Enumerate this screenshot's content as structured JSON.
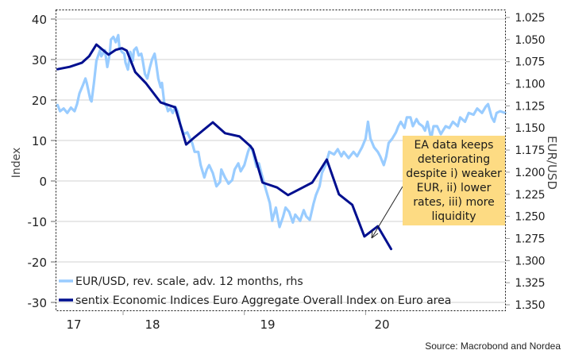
{
  "chart_data": {
    "type": "line",
    "title": "",
    "source": "Source: Macrobond and Nordea",
    "x_tick_labels": [
      "17",
      "18",
      "19",
      "20"
    ],
    "left_axis": {
      "label": "Index",
      "range": [
        -30,
        40
      ],
      "ticks": [
        40,
        30,
        20,
        10,
        0,
        -10,
        -20,
        -30
      ]
    },
    "right_axis": {
      "label": "EUR/USD",
      "reversed": true,
      "range": [
        1.025,
        1.35
      ],
      "ticks": [
        "1.025",
        "1.050",
        "1.075",
        "1.100",
        "1.125",
        "1.150",
        "1.175",
        "1.200",
        "1.225",
        "1.250",
        "1.275",
        "1.300",
        "1.325",
        "1.350"
      ]
    },
    "x_range": [
      2016.75,
      2020.45
    ],
    "grid": true,
    "legend_placement": "bottom-left",
    "series": [
      {
        "name": "EUR/USD, rev. scale, adv. 12 months, rhs",
        "axis": "right",
        "color": "#99CCFF",
        "points": [
          [
            2016.76,
            1.124
          ],
          [
            2016.78,
            1.131
          ],
          [
            2016.81,
            1.128
          ],
          [
            2016.84,
            1.133
          ],
          [
            2016.87,
            1.127
          ],
          [
            2016.9,
            1.131
          ],
          [
            2016.92,
            1.123
          ],
          [
            2016.94,
            1.111
          ],
          [
            2016.97,
            1.101
          ],
          [
            2016.99,
            1.094
          ],
          [
            2017.0,
            1.099
          ],
          [
            2017.03,
            1.118
          ],
          [
            2017.04,
            1.12
          ],
          [
            2017.06,
            1.099
          ],
          [
            2017.08,
            1.074
          ],
          [
            2017.11,
            1.062
          ],
          [
            2017.12,
            1.069
          ],
          [
            2017.15,
            1.062
          ],
          [
            2017.17,
            1.081
          ],
          [
            2017.19,
            1.066
          ],
          [
            2017.2,
            1.05
          ],
          [
            2017.22,
            1.047
          ],
          [
            2017.24,
            1.053
          ],
          [
            2017.26,
            1.045
          ],
          [
            2017.27,
            1.059
          ],
          [
            2017.29,
            1.064
          ],
          [
            2017.31,
            1.066
          ],
          [
            2017.32,
            1.076
          ],
          [
            2017.34,
            1.084
          ],
          [
            2017.36,
            1.064
          ],
          [
            2017.38,
            1.074
          ],
          [
            2017.39,
            1.062
          ],
          [
            2017.41,
            1.059
          ],
          [
            2017.43,
            1.068
          ],
          [
            2017.45,
            1.066
          ],
          [
            2017.46,
            1.072
          ],
          [
            2017.48,
            1.089
          ],
          [
            2017.5,
            1.094
          ],
          [
            2017.52,
            1.082
          ],
          [
            2017.54,
            1.072
          ],
          [
            2017.56,
            1.066
          ],
          [
            2017.57,
            1.074
          ],
          [
            2017.59,
            1.094
          ],
          [
            2017.61,
            1.104
          ],
          [
            2017.62,
            1.099
          ],
          [
            2017.64,
            1.122
          ],
          [
            2017.66,
            1.126
          ],
          [
            2017.67,
            1.131
          ],
          [
            2017.69,
            1.128
          ],
          [
            2017.71,
            1.133
          ],
          [
            2017.73,
            1.126
          ],
          [
            2017.75,
            1.131
          ],
          [
            2017.77,
            1.145
          ],
          [
            2017.8,
            1.157
          ],
          [
            2017.83,
            1.155
          ],
          [
            2017.87,
            1.167
          ],
          [
            2017.89,
            1.177
          ],
          [
            2017.92,
            1.177
          ],
          [
            2017.94,
            1.192
          ],
          [
            2017.97,
            1.206
          ],
          [
            2017.99,
            1.197
          ],
          [
            2018.01,
            1.192
          ],
          [
            2018.04,
            1.201
          ],
          [
            2018.07,
            1.216
          ],
          [
            2018.1,
            1.211
          ],
          [
            2018.11,
            1.197
          ],
          [
            2018.14,
            1.206
          ],
          [
            2018.17,
            1.213
          ],
          [
            2018.2,
            1.209
          ],
          [
            2018.22,
            1.197
          ],
          [
            2018.25,
            1.19
          ],
          [
            2018.27,
            1.199
          ],
          [
            2018.3,
            1.192
          ],
          [
            2018.33,
            1.177
          ],
          [
            2018.35,
            1.17
          ],
          [
            2018.37,
            1.177
          ],
          [
            2018.4,
            1.194
          ],
          [
            2018.42,
            1.19
          ],
          [
            2018.44,
            1.201
          ],
          [
            2018.47,
            1.216
          ],
          [
            2018.51,
            1.235
          ],
          [
            2018.53,
            1.255
          ],
          [
            2018.54,
            1.25
          ],
          [
            2018.56,
            1.24
          ],
          [
            2018.59,
            1.262
          ],
          [
            2018.62,
            1.25
          ],
          [
            2018.64,
            1.24
          ],
          [
            2018.67,
            1.245
          ],
          [
            2018.7,
            1.257
          ],
          [
            2018.72,
            1.248
          ],
          [
            2018.76,
            1.255
          ],
          [
            2018.79,
            1.243
          ],
          [
            2018.81,
            1.25
          ],
          [
            2018.84,
            1.254
          ],
          [
            2018.87,
            1.236
          ],
          [
            2018.89,
            1.226
          ],
          [
            2018.92,
            1.216
          ],
          [
            2018.94,
            1.201
          ],
          [
            2018.97,
            1.192
          ],
          [
            2019.0,
            1.177
          ],
          [
            2019.04,
            1.18
          ],
          [
            2019.07,
            1.174
          ],
          [
            2019.1,
            1.182
          ],
          [
            2019.12,
            1.177
          ],
          [
            2019.16,
            1.184
          ],
          [
            2019.2,
            1.177
          ],
          [
            2019.23,
            1.182
          ],
          [
            2019.27,
            1.172
          ],
          [
            2019.3,
            1.162
          ],
          [
            2019.32,
            1.143
          ],
          [
            2019.34,
            1.162
          ],
          [
            2019.37,
            1.172
          ],
          [
            2019.4,
            1.177
          ],
          [
            2019.42,
            1.182
          ],
          [
            2019.45,
            1.192
          ],
          [
            2019.47,
            1.182
          ],
          [
            2019.49,
            1.167
          ],
          [
            2019.52,
            1.162
          ],
          [
            2019.55,
            1.155
          ],
          [
            2019.57,
            1.148
          ],
          [
            2019.59,
            1.143
          ],
          [
            2019.62,
            1.15
          ],
          [
            2019.64,
            1.138
          ],
          [
            2019.67,
            1.138
          ],
          [
            2019.69,
            1.148
          ],
          [
            2019.72,
            1.14
          ],
          [
            2019.74,
            1.145
          ],
          [
            2019.77,
            1.148
          ],
          [
            2019.79,
            1.153
          ],
          [
            2019.81,
            1.143
          ],
          [
            2019.84,
            1.162
          ],
          [
            2019.86,
            1.148
          ],
          [
            2019.89,
            1.148
          ],
          [
            2019.92,
            1.157
          ],
          [
            2019.96,
            1.148
          ],
          [
            2019.99,
            1.15
          ],
          [
            2020.02,
            1.143
          ],
          [
            2020.06,
            1.148
          ],
          [
            2020.08,
            1.138
          ],
          [
            2020.12,
            1.143
          ],
          [
            2020.15,
            1.133
          ],
          [
            2020.19,
            1.135
          ],
          [
            2020.22,
            1.128
          ],
          [
            2020.26,
            1.133
          ],
          [
            2020.29,
            1.126
          ],
          [
            2020.31,
            1.123
          ],
          [
            2020.34,
            1.138
          ],
          [
            2020.36,
            1.143
          ],
          [
            2020.38,
            1.133
          ],
          [
            2020.41,
            1.131
          ],
          [
            2020.45,
            1.133
          ]
        ]
      },
      {
        "name": "sentix Economic Indices Euro Aggregate  Overall Index on Euro area",
        "axis": "left",
        "color": "#000F8F",
        "points": [
          [
            2016.76,
            27.6
          ],
          [
            2016.86,
            28.2
          ],
          [
            2016.96,
            29.2
          ],
          [
            2017.02,
            30.8
          ],
          [
            2017.08,
            33.7
          ],
          [
            2017.14,
            32.2
          ],
          [
            2017.18,
            31.2
          ],
          [
            2017.24,
            32.4
          ],
          [
            2017.29,
            32.8
          ],
          [
            2017.33,
            32.2
          ],
          [
            2017.4,
            26.9
          ],
          [
            2017.49,
            24.1
          ],
          [
            2017.61,
            19.4
          ],
          [
            2017.73,
            18.2
          ],
          [
            2017.82,
            9.0
          ],
          [
            2017.89,
            10.8
          ],
          [
            2018.04,
            14.5
          ],
          [
            2018.14,
            11.8
          ],
          [
            2018.26,
            11.0
          ],
          [
            2018.35,
            8.6
          ],
          [
            2018.37,
            7.8
          ],
          [
            2018.45,
            -0.4
          ],
          [
            2018.57,
            -1.6
          ],
          [
            2018.66,
            -3.5
          ],
          [
            2018.86,
            -0.4
          ],
          [
            2018.98,
            5.3
          ],
          [
            2019.08,
            -3.3
          ],
          [
            2019.19,
            -5.9
          ],
          [
            2019.29,
            -13.7
          ],
          [
            2019.4,
            -11.2
          ],
          [
            2019.51,
            -16.8
          ]
        ]
      }
    ],
    "annotation": {
      "lines": [
        "EA data keeps",
        "deteriorating",
        "despite i) weaker",
        "EUR, ii) lower",
        "rates, iii) more",
        "liquidity"
      ],
      "background": "#FDDB83"
    }
  }
}
